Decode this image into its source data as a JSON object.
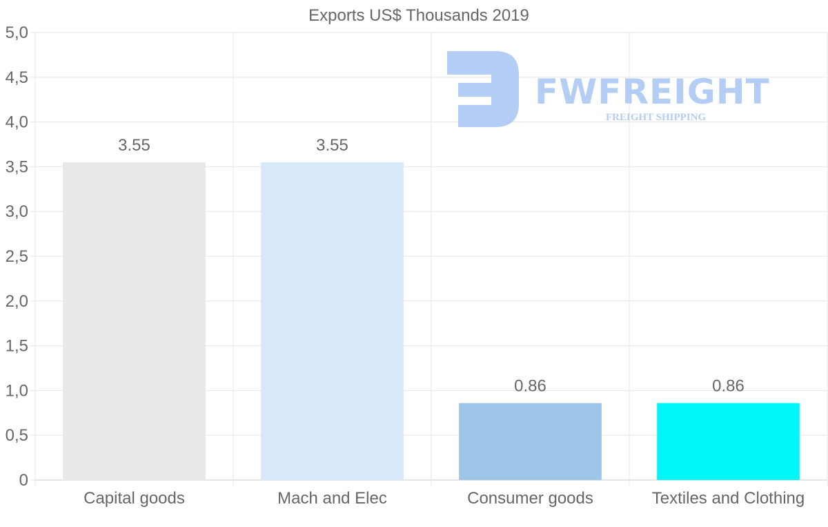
{
  "watermark": {
    "name": "FWFREIGHT",
    "tagline": "FREIGHT SHIPPING",
    "color": "#b3cdf4"
  },
  "chart_data": {
    "type": "bar",
    "title": "Exports US$ Thousands 2019",
    "xlabel": "",
    "ylabel": "",
    "ylim": [
      0,
      5
    ],
    "ytick_step": 0.5,
    "ytick_labels": [
      "0",
      "0,5",
      "1,0",
      "1,5",
      "2,0",
      "2,5",
      "3,0",
      "3,5",
      "4,0",
      "4,5",
      "5,0"
    ],
    "grid": true,
    "categories": [
      "Capital goods",
      "Mach and Elec",
      "Consumer goods",
      "Textiles and Clothing"
    ],
    "values": [
      3.55,
      3.55,
      0.86,
      0.86
    ],
    "value_labels": [
      "3.55",
      "3.55",
      "0.86",
      "0.86"
    ],
    "colors": [
      "#e8e8e8",
      "#d6e8fa",
      "#9ec4e8",
      "#00f7f7"
    ]
  }
}
